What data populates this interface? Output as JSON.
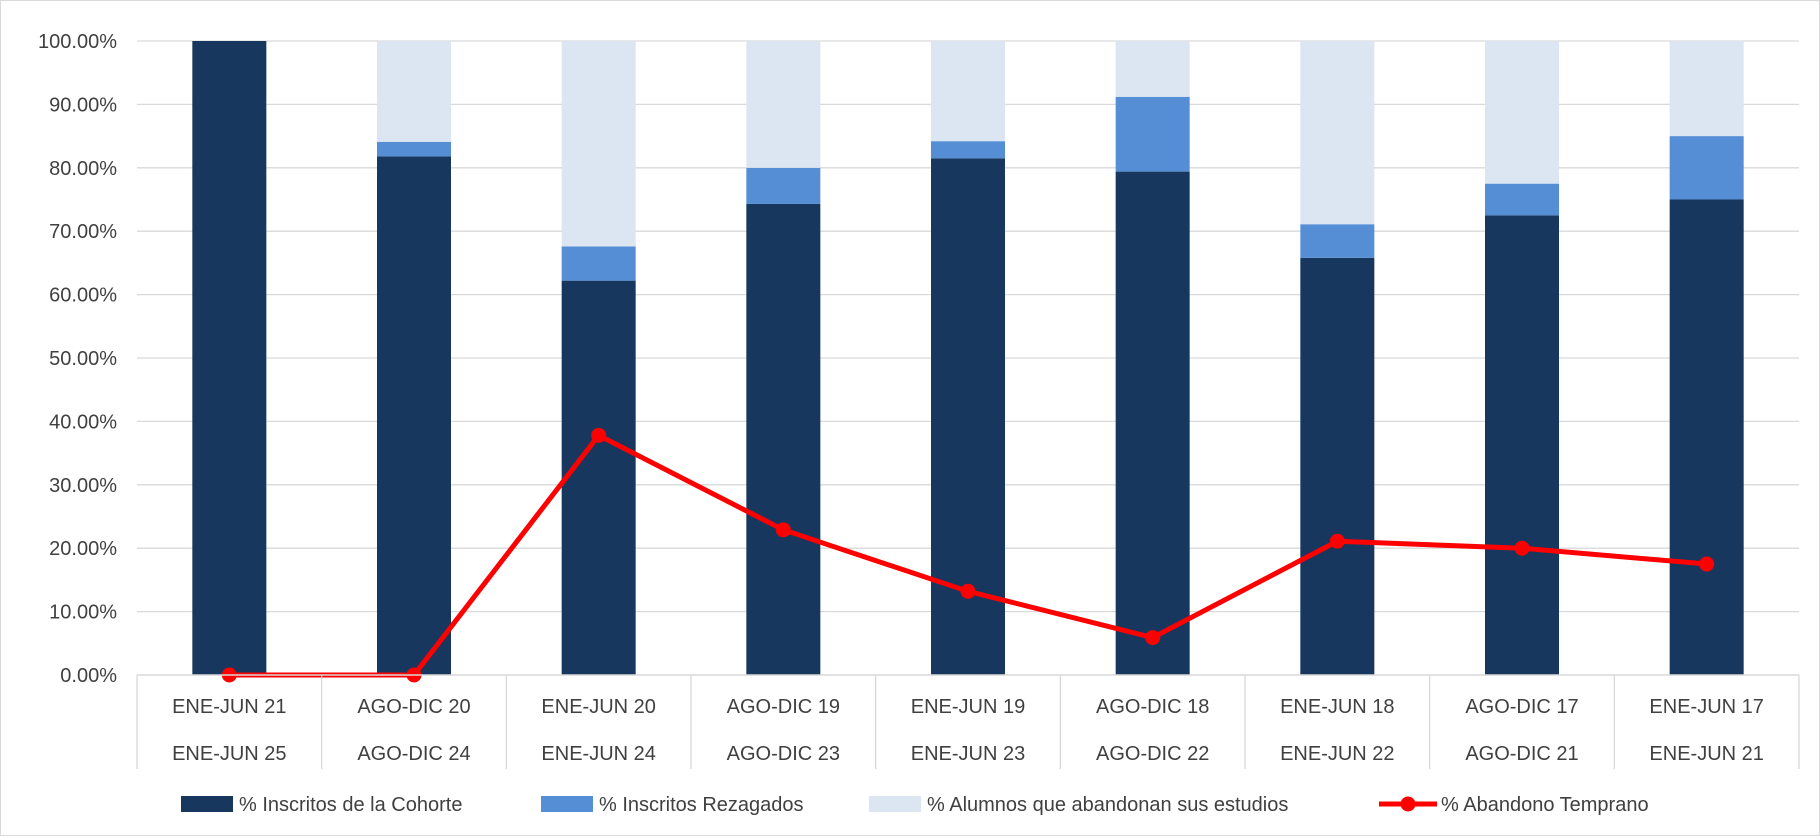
{
  "chart_data": {
    "type": "bar",
    "stacked": true,
    "title": "",
    "xlabel": "",
    "ylabel": "",
    "ylim": [
      0,
      100
    ],
    "y_tick_step": 10,
    "y_tick_labels": [
      "0.00%",
      "10.00%",
      "20.00%",
      "30.00%",
      "40.00%",
      "50.00%",
      "60.00%",
      "70.00%",
      "80.00%",
      "90.00%",
      "100.00%"
    ],
    "grid": true,
    "legend_position": "bottom",
    "categories": [
      [
        "ENE-JUN 21",
        "ENE-JUN 25"
      ],
      [
        "AGO-DIC 20",
        "AGO-DIC 24"
      ],
      [
        "ENE-JUN 20",
        "ENE-JUN 24"
      ],
      [
        "AGO-DIC 19",
        "AGO-DIC 23"
      ],
      [
        "ENE-JUN 19",
        "ENE-JUN 23"
      ],
      [
        "AGO-DIC 18",
        "AGO-DIC 22"
      ],
      [
        "ENE-JUN 18",
        "ENE-JUN 22"
      ],
      [
        "AGO-DIC 17",
        "AGO-DIC 21"
      ],
      [
        "ENE-JUN 17",
        "ENE-JUN 21"
      ]
    ],
    "series": [
      {
        "name": "% Inscritos de la Cohorte",
        "type": "bar",
        "color": "#17375e",
        "values": [
          100.0,
          81.8,
          62.2,
          74.3,
          81.5,
          79.4,
          65.8,
          72.5,
          75.0
        ]
      },
      {
        "name": "% Inscritos Rezagados",
        "type": "bar",
        "color": "#558ed5",
        "values": [
          0.0,
          2.3,
          5.4,
          5.7,
          2.7,
          11.8,
          5.3,
          5.0,
          10.0
        ]
      },
      {
        "name": "% Alumnos que abandonan sus estudios",
        "type": "bar",
        "color": "#dce6f2",
        "values": [
          0.0,
          15.9,
          32.4,
          20.0,
          15.8,
          8.8,
          28.9,
          22.5,
          15.0
        ]
      },
      {
        "name": "% Abandono Temprano",
        "type": "line",
        "color": "#ff0000",
        "values": [
          0.0,
          0.0,
          37.8,
          22.9,
          13.2,
          5.9,
          21.1,
          20.0,
          17.5
        ]
      }
    ]
  }
}
